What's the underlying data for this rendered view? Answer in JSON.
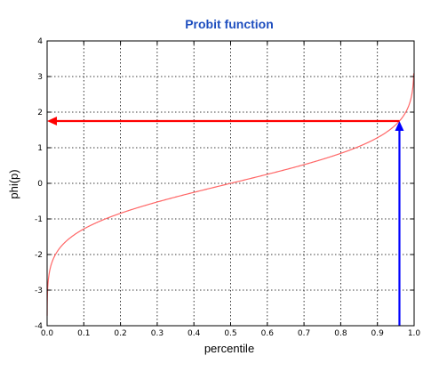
{
  "chart_data": {
    "type": "line",
    "title": "Probit function",
    "xlabel": "percentile",
    "ylabel": "phi(p)",
    "xlim": [
      0.0,
      1.0
    ],
    "ylim": [
      -4,
      4
    ],
    "x_ticks": [
      0.0,
      0.1,
      0.2,
      0.3,
      0.4,
      0.5,
      0.6,
      0.7,
      0.8,
      0.9,
      1.0
    ],
    "x_tick_labels": [
      "0.0",
      "0.1",
      "0.2",
      "0.3",
      "0.4",
      "0.5",
      "0.6",
      "0.7",
      "0.8",
      "0.9",
      "1.0"
    ],
    "y_ticks": [
      -4,
      -3,
      -2,
      -1,
      0,
      1,
      2,
      3,
      4
    ],
    "y_tick_labels": [
      "-4",
      "-3",
      "-2",
      "-1",
      "0",
      "1",
      "2",
      "3",
      "4"
    ],
    "grid": true,
    "series": [
      {
        "function": "probit",
        "x_min": 0.0001,
        "x_max": 0.999,
        "color": "#ff6666"
      }
    ],
    "annotations": [
      {
        "kind": "vertical-arrow",
        "x": 0.96,
        "y_from": -4,
        "y_to": 1.75,
        "color": "#0000ff"
      },
      {
        "kind": "horizontal-arrow",
        "y": 1.75,
        "x_from": 0.96,
        "x_to": 0.0,
        "color": "#ff0000"
      }
    ],
    "colors": {
      "title": "#1f4fbf",
      "frame": "#000000"
    }
  }
}
